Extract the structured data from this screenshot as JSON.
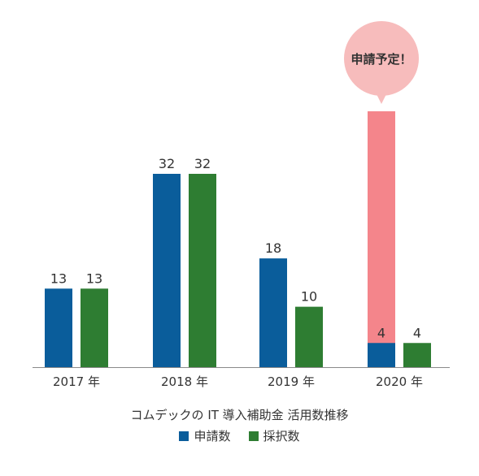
{
  "chart_data": {
    "type": "bar",
    "title": "コムデックの IT 導入補助金 活用数推移",
    "categories": [
      "2017 年",
      "2018 年",
      "2019 年",
      "2020 年"
    ],
    "series": [
      {
        "name": "申請数",
        "values": [
          13,
          32,
          18,
          4
        ],
        "color": "#0a5d9b"
      },
      {
        "name": "採択数",
        "values": [
          13,
          32,
          10,
          4
        ],
        "color": "#2e7d32"
      }
    ],
    "data_labels": [
      [
        "13",
        "32",
        "18",
        "4"
      ],
      [
        "13",
        "32",
        "10",
        "4"
      ]
    ],
    "annotation": {
      "text": "申請予定！",
      "category": "2020 年",
      "series": "申請数",
      "bar_color": "#f4858b",
      "bubble_color": "#f7bcbc"
    },
    "ylim": [
      0,
      32
    ],
    "grid": false,
    "legend_position": "bottom-center",
    "baseline_color": "#8a8a8a"
  }
}
